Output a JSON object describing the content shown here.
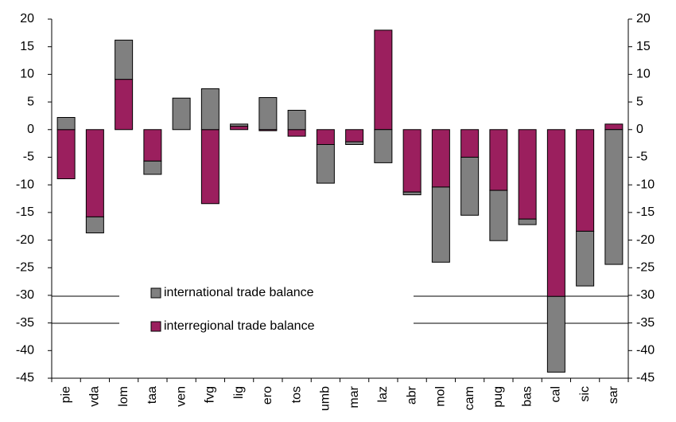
{
  "chart_data": {
    "type": "stacked_bar",
    "categories": [
      "pie",
      "vda",
      "lom",
      "taa",
      "ven",
      "fvg",
      "lig",
      "ero",
      "tos",
      "umb",
      "mar",
      "laz",
      "abr",
      "mol",
      "cam",
      "pug",
      "bas",
      "cal",
      "sic",
      "sar"
    ],
    "series": [
      {
        "name": "international trade balance",
        "color": "#808080",
        "values": [
          2.2,
          -2.9,
          7.1,
          -2.4,
          5.7,
          7.4,
          0.4,
          5.8,
          3.5,
          -7.0,
          -0.5,
          -6.0,
          -0.5,
          -13.6,
          -10.5,
          -9.1,
          -1.0,
          -13.7,
          -9.9,
          -24.4
        ]
      },
      {
        "name": "interregional trade balance",
        "color": "#9B1F5E",
        "values": [
          -8.9,
          -15.8,
          9.1,
          -5.7,
          0,
          -13.4,
          0.6,
          -0.2,
          -1.2,
          -2.7,
          -2.2,
          18.0,
          -11.3,
          -10.4,
          -5.0,
          -11.0,
          -16.2,
          -30.2,
          -18.4,
          1.0
        ]
      }
    ],
    "ylim": [
      -45,
      20
    ],
    "yticks": [
      -45,
      -40,
      -35,
      -30,
      -25,
      -20,
      -15,
      -10,
      -5,
      0,
      5,
      10,
      15,
      20
    ],
    "y2lim": [
      -45,
      20
    ],
    "y2ticks": [
      -45,
      -40,
      -35,
      -30,
      -25,
      -20,
      -15,
      -10,
      -5,
      0,
      5,
      10,
      15,
      20
    ]
  }
}
